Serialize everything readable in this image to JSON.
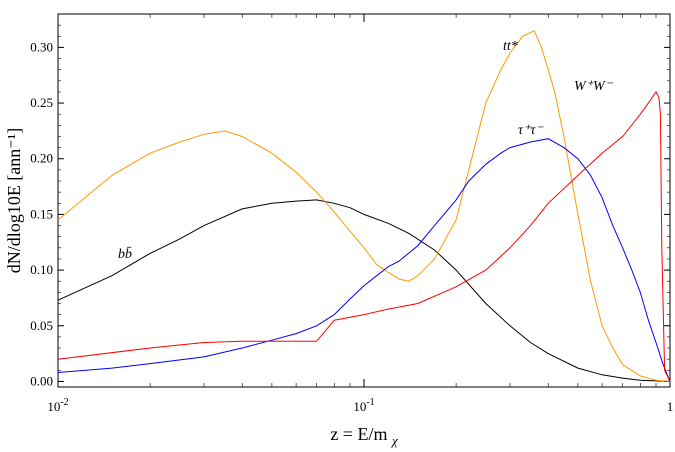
{
  "chart_data": {
    "type": "line",
    "xlabel": "z = E/m",
    "xlabel_subscript": "χ",
    "ylabel": "dN/dlog10E [ann⁻¹]",
    "xscale": "log",
    "xlim": [
      0.01,
      1
    ],
    "ylim": [
      -0.005,
      0.33
    ],
    "x_ticks": [
      "10^-2",
      "10^-1",
      "1"
    ],
    "y_ticks": [
      "0.00",
      "0.05",
      "0.10",
      "0.15",
      "0.20",
      "0.25",
      "0.30"
    ],
    "grid": false,
    "legend": "none",
    "series": [
      {
        "name": "bb̄",
        "label_main": "b b",
        "color": "#000000",
        "x": [
          0.01,
          0.015,
          0.02,
          0.025,
          0.03,
          0.04,
          0.05,
          0.06,
          0.07,
          0.08,
          0.09,
          0.1,
          0.12,
          0.14,
          0.17,
          0.2,
          0.25,
          0.3,
          0.35,
          0.4,
          0.5,
          0.6,
          0.7,
          0.8,
          0.9,
          1.0
        ],
        "values": [
          0.073,
          0.095,
          0.115,
          0.128,
          0.14,
          0.155,
          0.16,
          0.162,
          0.163,
          0.16,
          0.156,
          0.15,
          0.142,
          0.133,
          0.118,
          0.1,
          0.07,
          0.05,
          0.035,
          0.025,
          0.012,
          0.006,
          0.003,
          0.001,
          0.0005,
          0.0
        ]
      },
      {
        "name": "tt*",
        "color": "#ff9900",
        "x": [
          0.01,
          0.015,
          0.02,
          0.025,
          0.03,
          0.035,
          0.04,
          0.05,
          0.06,
          0.07,
          0.08,
          0.09,
          0.1,
          0.11,
          0.12,
          0.13,
          0.14,
          0.15,
          0.17,
          0.2,
          0.22,
          0.25,
          0.28,
          0.3,
          0.33,
          0.36,
          0.38,
          0.4,
          0.42,
          0.45,
          0.5,
          0.55,
          0.6,
          0.65,
          0.7,
          0.8,
          0.9,
          1.0
        ],
        "values": [
          0.145,
          0.185,
          0.205,
          0.215,
          0.222,
          0.225,
          0.22,
          0.205,
          0.188,
          0.17,
          0.152,
          0.135,
          0.12,
          0.105,
          0.098,
          0.092,
          0.09,
          0.095,
          0.11,
          0.145,
          0.19,
          0.25,
          0.28,
          0.295,
          0.31,
          0.315,
          0.3,
          0.28,
          0.26,
          0.22,
          0.15,
          0.09,
          0.05,
          0.03,
          0.015,
          0.005,
          0.001,
          0.0
        ]
      },
      {
        "name": "τ⁺τ⁻",
        "color": "#0000ff",
        "x": [
          0.01,
          0.015,
          0.02,
          0.03,
          0.04,
          0.05,
          0.06,
          0.07,
          0.08,
          0.09,
          0.1,
          0.11,
          0.12,
          0.13,
          0.15,
          0.17,
          0.2,
          0.22,
          0.25,
          0.28,
          0.3,
          0.35,
          0.4,
          0.45,
          0.5,
          0.55,
          0.6,
          0.65,
          0.7,
          0.75,
          0.8,
          0.85,
          0.9,
          0.95,
          1.0
        ],
        "values": [
          0.008,
          0.012,
          0.016,
          0.022,
          0.03,
          0.037,
          0.043,
          0.05,
          0.06,
          0.074,
          0.086,
          0.095,
          0.103,
          0.108,
          0.122,
          0.14,
          0.163,
          0.18,
          0.195,
          0.205,
          0.21,
          0.215,
          0.218,
          0.21,
          0.2,
          0.185,
          0.165,
          0.14,
          0.12,
          0.1,
          0.08,
          0.055,
          0.035,
          0.015,
          0.0
        ]
      },
      {
        "name": "W⁺W⁻",
        "color": "#ff0000",
        "x": [
          0.01,
          0.02,
          0.03,
          0.04,
          0.05,
          0.06,
          0.07,
          0.08,
          0.1,
          0.12,
          0.15,
          0.2,
          0.25,
          0.3,
          0.35,
          0.4,
          0.5,
          0.6,
          0.7,
          0.8,
          0.85,
          0.9,
          0.92,
          0.93,
          0.94,
          0.96,
          1.0
        ],
        "values": [
          0.02,
          0.03,
          0.035,
          0.036,
          0.036,
          0.036,
          0.036,
          0.055,
          0.06,
          0.065,
          0.07,
          0.085,
          0.1,
          0.12,
          0.14,
          0.16,
          0.185,
          0.205,
          0.22,
          0.24,
          0.25,
          0.26,
          0.255,
          0.24,
          0.12,
          0.01,
          0.0
        ]
      }
    ]
  }
}
